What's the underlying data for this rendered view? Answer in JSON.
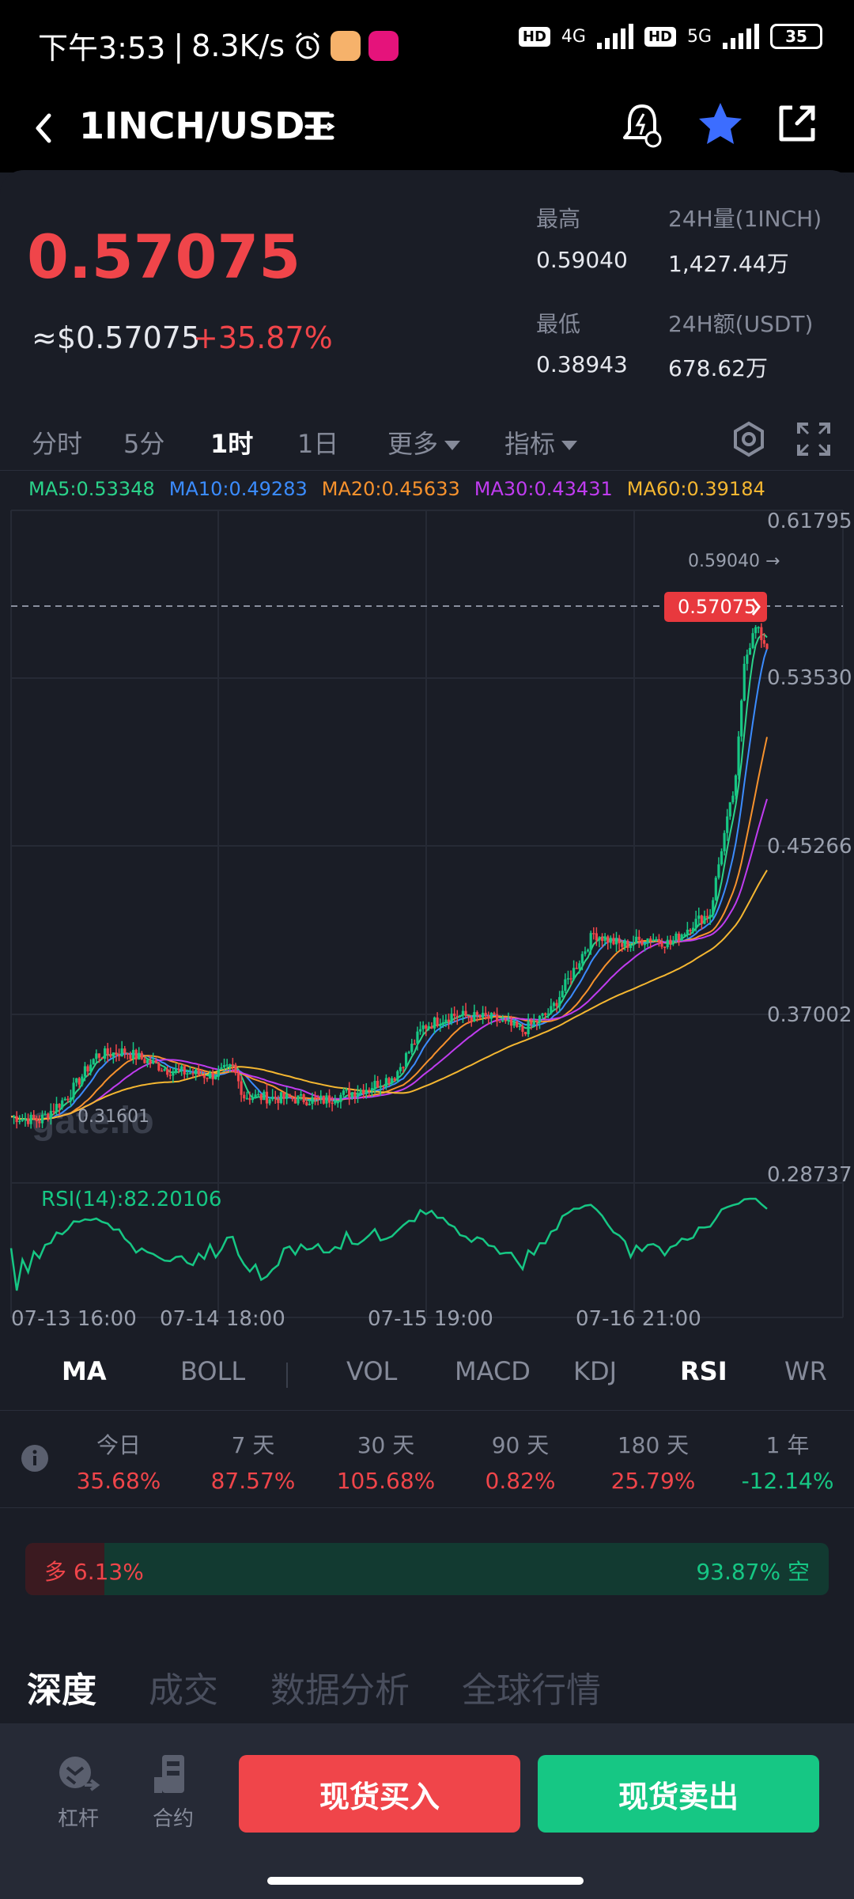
{
  "status_bar": {
    "time": "下午3:53",
    "speed": "8.3K/s",
    "hd1": "HD",
    "net1": "4G",
    "hd2": "HD",
    "net2": "5G",
    "battery": "35"
  },
  "header": {
    "pair": "1INCH/USDT"
  },
  "ticker": {
    "price": "0.57075",
    "usd_price": "≈$0.57075",
    "change": "+35.87%",
    "high_label": "最高",
    "high_value": "0.59040",
    "low_label": "最低",
    "low_value": "0.38943",
    "vol_label": "24H量(1INCH)",
    "vol_value": "1,427.44万",
    "amount_label": "24H额(USDT)",
    "amount_value": "678.62万"
  },
  "time_tabs": [
    "分时",
    "5分",
    "1时",
    "1日",
    "更多",
    "指标"
  ],
  "active_time_tab": "1时",
  "ma_legend": [
    {
      "text": "MA5:0.53348",
      "color": "#2bd38a"
    },
    {
      "text": "MA10:0.49283",
      "color": "#3b8cff"
    },
    {
      "text": "MA20:0.45633",
      "color": "#f7922d"
    },
    {
      "text": "MA30:0.43431",
      "color": "#c03cf0"
    },
    {
      "text": "MA60:0.39184",
      "color": "#f5b731"
    }
  ],
  "chart_data": {
    "type": "candlestick",
    "y_axis_labels": [
      "0.61795",
      "0.53530",
      "0.45266",
      "0.37002",
      "0.28737"
    ],
    "ylim": [
      0.28737,
      0.61795
    ],
    "x_axis_labels": [
      "07-13 16:00",
      "07-14 18:00",
      "07-15 19:00",
      "07-16 21:00"
    ],
    "current_price_tag": "0.57075",
    "high_marker": "0.59040 →",
    "low_marker": "0.31601",
    "watermark": "gate.io",
    "rsi_label": "RSI(14):82.20106",
    "colors": {
      "up": "#16c784",
      "down": "#f0454a",
      "rsi": "#16c784"
    }
  },
  "indicator_tabs": [
    "MA",
    "BOLL",
    "VOL",
    "MACD",
    "KDJ",
    "RSI",
    "WR"
  ],
  "active_main_indicator": "MA",
  "active_sub_indicator": "RSI",
  "performance": [
    {
      "label": "今日",
      "value": "35.68%",
      "color": "#f0454a"
    },
    {
      "label": "7 天",
      "value": "87.57%",
      "color": "#f0454a"
    },
    {
      "label": "30 天",
      "value": "105.68%",
      "color": "#f0454a"
    },
    {
      "label": "90 天",
      "value": "0.82%",
      "color": "#f0454a"
    },
    {
      "label": "180 天",
      "value": "25.79%",
      "color": "#f0454a"
    },
    {
      "label": "1 年",
      "value": "-12.14%",
      "color": "#16c784"
    }
  ],
  "long_short": {
    "long_text": "多 6.13%",
    "short_text": "93.87% 空",
    "long_pct": 6.13
  },
  "bottom_tabs": [
    "深度",
    "成交",
    "数据分析",
    "全球行情"
  ],
  "actions": {
    "leverage": "杠杆",
    "contract": "合约",
    "buy": "现货买入",
    "sell": "现货卖出"
  }
}
